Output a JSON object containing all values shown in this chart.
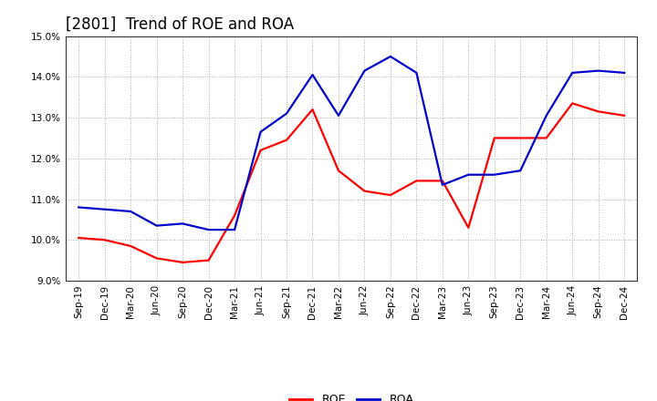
{
  "title": "[2801]  Trend of ROE and ROA",
  "labels": [
    "Sep-19",
    "Dec-19",
    "Mar-20",
    "Jun-20",
    "Sep-20",
    "Dec-20",
    "Mar-21",
    "Jun-21",
    "Sep-21",
    "Dec-21",
    "Mar-22",
    "Jun-22",
    "Sep-22",
    "Dec-22",
    "Mar-23",
    "Jun-23",
    "Sep-23",
    "Dec-23",
    "Mar-24",
    "Jun-24",
    "Sep-24",
    "Dec-24"
  ],
  "ROE": [
    10.05,
    10.0,
    9.85,
    9.55,
    9.45,
    9.5,
    10.6,
    12.2,
    12.45,
    13.2,
    11.7,
    11.2,
    11.1,
    11.45,
    11.45,
    10.3,
    12.5,
    12.5,
    12.5,
    13.35,
    13.15,
    13.05
  ],
  "ROA": [
    10.8,
    10.75,
    10.7,
    10.35,
    10.4,
    10.25,
    10.25,
    12.65,
    13.1,
    14.05,
    13.05,
    14.15,
    14.5,
    14.1,
    11.35,
    11.6,
    11.6,
    11.7,
    13.05,
    14.1,
    14.15,
    14.1
  ],
  "ROE_color": "#ff0000",
  "ROA_color": "#0000cc",
  "ylim": [
    9.0,
    15.0
  ],
  "yticks": [
    9.0,
    10.0,
    11.0,
    12.0,
    13.0,
    14.0,
    15.0
  ],
  "background_color": "#ffffff",
  "grid_color": "#aaaaaa",
  "title_fontsize": 12,
  "tick_fontsize": 7.5,
  "legend_fontsize": 9
}
